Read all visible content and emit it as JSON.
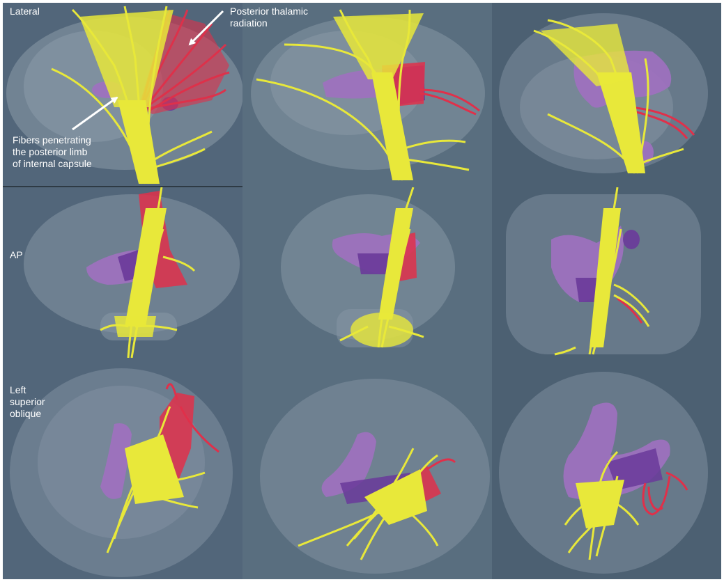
{
  "row_labels": {
    "lateral": "Lateral",
    "ap": "AP",
    "oblique": "Left\nsuperior\noblique"
  },
  "annotations": {
    "posterior_thalamic": "Posterior thalamic\nradiation",
    "internal_capsule": "Fibers penetrating\nthe posterior limb\nof internal capsule"
  },
  "colors": {
    "background_main": "#55697a",
    "background_col3": "#4a5d6e",
    "background_col1": "#52667a",
    "brain": "#8a9aa8",
    "corticospinal_fibers": "#e8e83a",
    "thalamic_radiation": "#e0304a",
    "ventricles": "#a070c0",
    "ventricles_dark": "#6a3a9a"
  },
  "icons": [
    "arrow-icon"
  ]
}
